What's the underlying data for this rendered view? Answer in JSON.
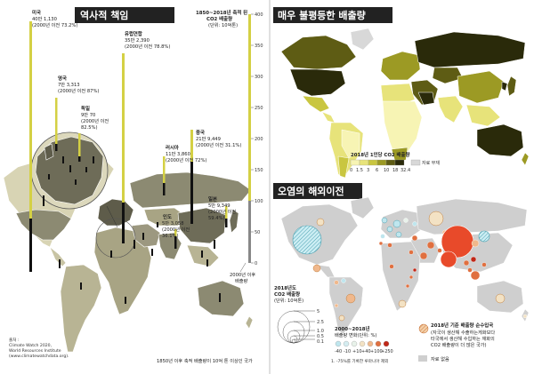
{
  "left": {
    "title": "역사적 책임",
    "axis_title_1": "1850~2018년 축적 된",
    "axis_title_2": "CO2 배출량",
    "axis_title_3": "(단위: 10억톤)",
    "axis_ticks": [
      "400",
      "350",
      "300",
      "250",
      "200",
      "150",
      "100",
      "50",
      "0"
    ],
    "axis_note_1": "2000년 이후",
    "axis_note_2": "배출량",
    "bottom_note": "1850년 이후 축적 배출량이 10억 톤 이상인 국가",
    "source_1": "출처 :",
    "source_2": "Climate Watch 2020,",
    "source_3": "World Resources Institute",
    "source_4": "(www.climatewatchdata.org).",
    "countries": [
      {
        "name": "미국",
        "line1": "40만 1,130",
        "line2": "(2000년 이전 73.2%)"
      },
      {
        "name": "유럽연합",
        "line1": "35만 2,390",
        "line2": "(2000년 이전 78.8%)"
      },
      {
        "name": "영국",
        "line1": "7만 3,313",
        "line2": "(2000년 이전 87%)"
      },
      {
        "name": "독일",
        "line1": "9만 70",
        "line2": "(2000년 이전",
        "line3": "82.5%)"
      },
      {
        "name": "러시아",
        "line1": "11만 3,860",
        "line2": "(2000년 이전 72%)"
      },
      {
        "name": "중국",
        "line1": "21만 9,449",
        "line2": "(2000년 이전 31.1%)"
      },
      {
        "name": "일본",
        "line1": "5만 9,349",
        "line2": "(2000년 이전",
        "line3": "59.4%)"
      },
      {
        "name": "인도",
        "line1": "5만 3,058",
        "line2": "(2000년 이전",
        "line3": "36.1%)"
      }
    ]
  },
  "right_top": {
    "title": "매우 불평등한 배출량",
    "legend_title": "2018년 1인당 CO2 배출량",
    "legend_ticks": [
      "0",
      "1.5",
      "3",
      "6",
      "10",
      "18",
      "32.4"
    ],
    "no_data": "자료 부재",
    "colors": [
      "#f7f4b4",
      "#e7e37a",
      "#c9c640",
      "#9c9a24",
      "#5e5c14",
      "#2a2a0a"
    ]
  },
  "right_bottom": {
    "title": "오염의 해외이전",
    "size_legend_title_1": "2018년도",
    "size_legend_title_2": "CO2 배출량",
    "size_legend_title_3": "(단위: 10억톤)",
    "size_ticks": [
      "5",
      "2.5",
      "1.0",
      "0.5",
      "0.1"
    ],
    "change_title_1": "2000~2018년",
    "change_title_2": "배출량 변화(단위: %)",
    "change_ticks": [
      "-40",
      "-10",
      "+10",
      "+40",
      "+100",
      "+250"
    ],
    "change_note": "1. -75%를 기록한 루마니아 제외",
    "change_colors": [
      "#bfe6ee",
      "#e8f2ea",
      "#f3e2c4",
      "#f0b88c",
      "#e07040",
      "#c02818"
    ],
    "net_title": "2018년 기준 배출량 순수입국",
    "net_desc_1": "(자국이 생산해 수출하는게화보다",
    "net_desc_2": "타국에서 생산해 수입하는 재화의",
    "net_desc_3": "CO2 배출량이 더 많은 국가)",
    "no_data": "자료 없음"
  }
}
